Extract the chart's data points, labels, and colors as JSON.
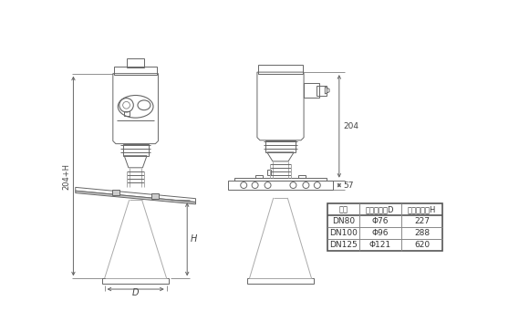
{
  "bg_color": "#ffffff",
  "line_color": "#aaaaaa",
  "dark_line": "#666666",
  "table_headers": [
    "法兰",
    "喇叭口直径D",
    "喇叭口高度H"
  ],
  "table_rows": [
    [
      "DN80",
      "Φ76",
      "227"
    ],
    [
      "DN100",
      "Φ96",
      "288"
    ],
    [
      "DN125",
      "Φ121",
      "620"
    ]
  ],
  "dim_label_204": "204",
  "dim_label_57": "57",
  "dim_label_H": "H",
  "dim_label_204H": "204+H",
  "dim_label_D": "D"
}
